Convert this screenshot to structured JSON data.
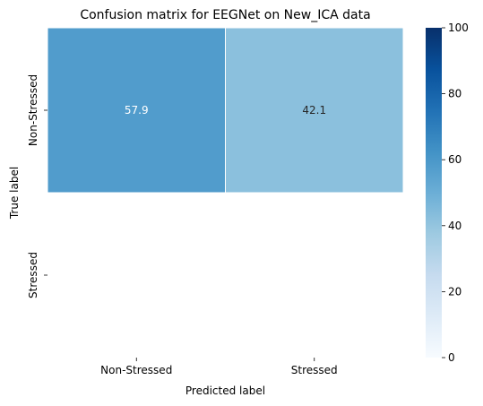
{
  "chart_data": {
    "type": "heatmap",
    "title": "Confusion matrix for EEGNet on New_ICA data",
    "xlabel": "Predicted label",
    "ylabel": "True label",
    "x_categories": [
      "Non-Stressed",
      "Stressed"
    ],
    "y_categories": [
      "Non-Stressed",
      "Stressed"
    ],
    "cells": [
      [
        57.9,
        42.1
      ],
      [
        null,
        null
      ]
    ],
    "cell_labels": [
      [
        "57.9",
        "42.1"
      ],
      [
        "",
        ""
      ]
    ],
    "colormap": "Blues",
    "color_range": [
      0,
      100
    ],
    "colorbar": {
      "ticks": [
        0,
        20,
        40,
        60,
        80,
        100
      ],
      "tick_labels": [
        "0",
        "20",
        "40",
        "60",
        "80",
        "100"
      ],
      "location": "right"
    },
    "grid": false
  }
}
